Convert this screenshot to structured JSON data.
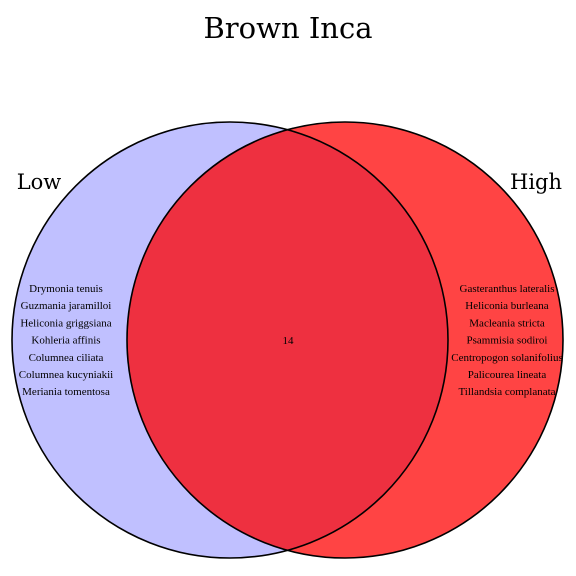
{
  "title": "Brown Inca",
  "sets": {
    "left": {
      "label": "Low",
      "color": "#c0c0ff"
    },
    "right": {
      "label": "High",
      "color": "#ff4444"
    },
    "overlap_color": "#ee3040"
  },
  "left_only": [
    "Drymonia tenuis",
    "Guzmania jaramilloi",
    "Heliconia griggsiana",
    "Kohleria affinis",
    "Columnea ciliata",
    "Columnea kucyniakii",
    "Meriania tomentosa"
  ],
  "right_only": [
    "Gasteranthus lateralis",
    "Heliconia burleana",
    "Macleania stricta",
    "Psammisia sodiroi",
    "Centropogon solanifolius",
    "Palicourea lineata",
    "Tillandsia complanata"
  ],
  "intersection_count": "14"
}
